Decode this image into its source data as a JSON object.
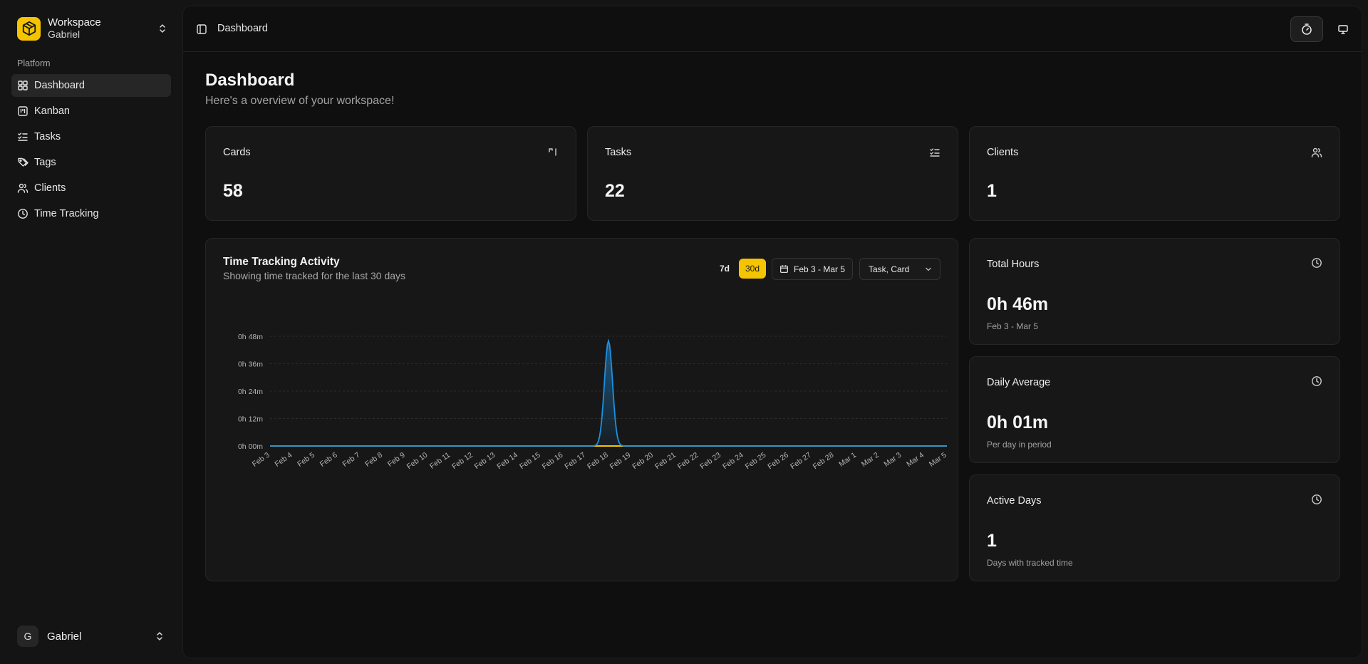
{
  "workspace": {
    "name": "Workspace",
    "owner": "Gabriel",
    "logo_color": "#f5c400"
  },
  "sidebar": {
    "section_label": "Platform",
    "items": [
      {
        "label": "Dashboard",
        "icon": "dashboard-grid-icon",
        "active": true
      },
      {
        "label": "Kanban",
        "icon": "kanban-icon"
      },
      {
        "label": "Tasks",
        "icon": "list-checks-icon"
      },
      {
        "label": "Tags",
        "icon": "tags-icon"
      },
      {
        "label": "Clients",
        "icon": "users-icon"
      },
      {
        "label": "Time Tracking",
        "icon": "clock-icon"
      }
    ]
  },
  "user": {
    "initial": "G",
    "name": "Gabriel"
  },
  "header": {
    "breadcrumb": "Dashboard"
  },
  "page": {
    "title": "Dashboard",
    "subtitle": "Here's a overview of your workspace!"
  },
  "stats": [
    {
      "label": "Cards",
      "value": "58",
      "icon": "kanban-icon"
    },
    {
      "label": "Tasks",
      "value": "22",
      "icon": "list-checks-icon"
    },
    {
      "label": "Clients",
      "value": "1",
      "icon": "users-icon"
    }
  ],
  "activity": {
    "title": "Time Tracking Activity",
    "subtitle": "Showing time tracked for the last 30 days",
    "range_7d": "7d",
    "range_30d": "30d",
    "date_range": "Feb 3 - Mar 5",
    "filter": "Task, Card",
    "accent": "#f5c400",
    "series_color": "#1e90e0"
  },
  "summary": [
    {
      "label": "Total Hours",
      "value": "0h 46m",
      "note": "Feb 3 - Mar 5"
    },
    {
      "label": "Daily Average",
      "value": "0h 01m",
      "note": "Per day in period"
    },
    {
      "label": "Active Days",
      "value": "1",
      "note": "Days with tracked time"
    }
  ],
  "chart_data": {
    "type": "area",
    "x": [
      "Feb 3",
      "Feb 4",
      "Feb 5",
      "Feb 6",
      "Feb 7",
      "Feb 8",
      "Feb 9",
      "Feb 10",
      "Feb 11",
      "Feb 12",
      "Feb 13",
      "Feb 14",
      "Feb 15",
      "Feb 16",
      "Feb 17",
      "Feb 18",
      "Feb 19",
      "Feb 20",
      "Feb 21",
      "Feb 22",
      "Feb 23",
      "Feb 24",
      "Feb 25",
      "Feb 26",
      "Feb 27",
      "Feb 28",
      "Mar 1",
      "Mar 2",
      "Mar 3",
      "Mar 4",
      "Mar 5"
    ],
    "series": [
      {
        "values": [
          0,
          0,
          0,
          0,
          0,
          0,
          0,
          0,
          0,
          0,
          0,
          0,
          0,
          0,
          0,
          46,
          0,
          0,
          0,
          0,
          0,
          0,
          0,
          0,
          0,
          0,
          0,
          0,
          0,
          0,
          0
        ]
      }
    ],
    "yticks": [
      "0h 00m",
      "0h 12m",
      "0h 24m",
      "0h 36m",
      "0h 48m"
    ],
    "ytick_values": [
      0,
      12,
      24,
      36,
      48
    ],
    "ylim": [
      0,
      48
    ],
    "grid": true
  }
}
